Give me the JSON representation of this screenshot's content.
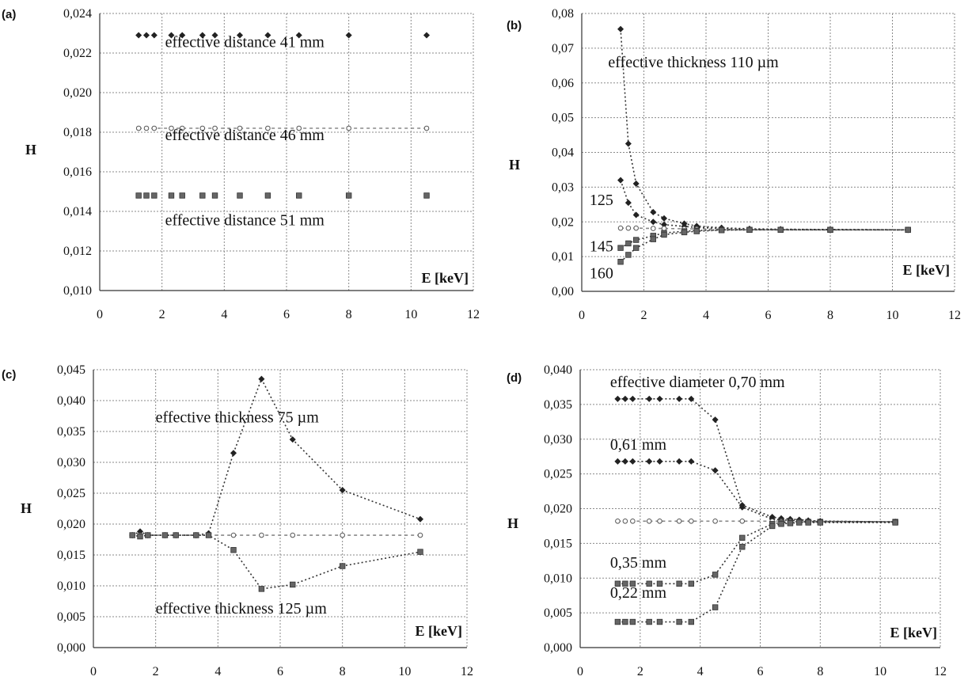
{
  "chart_data": [
    {
      "type": "scatter",
      "panel_label": "(a)",
      "xlabel": "E [keV]",
      "ylabel": "H",
      "xlim": [
        0,
        12
      ],
      "ylim": [
        0.01,
        0.024
      ],
      "x_ticks": [
        "0",
        "2",
        "4",
        "6",
        "8",
        "10",
        "12"
      ],
      "y_ticks": [
        "0,010",
        "0,012",
        "0,014",
        "0,016",
        "0,018",
        "0,020",
        "0,022",
        "0,024"
      ],
      "grid": true,
      "series": [
        {
          "marker": "filled-diamond",
          "line": "none",
          "x": [
            1.25,
            1.5,
            1.75,
            2.3,
            2.65,
            3.3,
            3.7,
            4.5,
            5.4,
            6.4,
            8.0,
            10.5
          ],
          "y": [
            0.0229,
            0.0229,
            0.0229,
            0.0229,
            0.0229,
            0.0229,
            0.0229,
            0.0229,
            0.0229,
            0.0229,
            0.0229,
            0.0229
          ]
        },
        {
          "marker": "open-circle",
          "line": "dashed",
          "x": [
            1.25,
            1.5,
            1.75,
            2.3,
            2.65,
            3.3,
            3.7,
            4.5,
            5.4,
            6.4,
            8.0,
            10.5
          ],
          "y": [
            0.0182,
            0.0182,
            0.0182,
            0.0182,
            0.0182,
            0.0182,
            0.0182,
            0.0182,
            0.0182,
            0.0182,
            0.0182,
            0.0182
          ]
        },
        {
          "marker": "filled-square",
          "line": "none",
          "x": [
            1.25,
            1.5,
            1.75,
            2.3,
            2.65,
            3.3,
            3.7,
            4.5,
            5.4,
            6.4,
            8.0,
            10.5
          ],
          "y": [
            0.0148,
            0.0148,
            0.0148,
            0.0148,
            0.0148,
            0.0148,
            0.0148,
            0.0148,
            0.0148,
            0.0148,
            0.0148,
            0.0148
          ]
        }
      ],
      "annotations": [
        {
          "text": "effective distance 41 mm",
          "x": 2.1,
          "y": 0.0223
        },
        {
          "text": "effective distance 46 mm",
          "x": 2.1,
          "y": 0.0176
        },
        {
          "text": "effective distance 51 mm",
          "x": 2.1,
          "y": 0.0133
        }
      ]
    },
    {
      "type": "scatter",
      "panel_label": "(b)",
      "xlabel": "E [keV]",
      "ylabel": "H",
      "xlim": [
        0,
        12
      ],
      "ylim": [
        0.0,
        0.08
      ],
      "x_ticks": [
        "0",
        "2",
        "4",
        "6",
        "8",
        "10",
        "12"
      ],
      "y_ticks": [
        "0,00",
        "0,01",
        "0,02",
        "0,03",
        "0,04",
        "0,05",
        "0,06",
        "0,07",
        "0,08"
      ],
      "grid": true,
      "series": [
        {
          "marker": "filled-diamond",
          "line": "dotted",
          "x": [
            1.25,
            1.5,
            1.75,
            2.3,
            2.65,
            3.3,
            3.7,
            4.5,
            5.4,
            6.4,
            8.0,
            10.5
          ],
          "y": [
            0.0755,
            0.0425,
            0.031,
            0.0228,
            0.021,
            0.0195,
            0.0188,
            0.0183,
            0.018,
            0.0179,
            0.0178,
            0.0177
          ]
        },
        {
          "marker": "filled-diamond",
          "line": "dotted",
          "x": [
            1.25,
            1.5,
            1.75,
            2.3,
            2.65,
            3.3,
            3.7,
            4.5,
            5.4,
            6.4,
            8.0,
            10.5
          ],
          "y": [
            0.032,
            0.0255,
            0.022,
            0.02,
            0.0192,
            0.0187,
            0.0184,
            0.0181,
            0.0179,
            0.0178,
            0.0178,
            0.0177
          ]
        },
        {
          "marker": "open-circle",
          "line": "dashed",
          "x": [
            1.25,
            1.5,
            1.75,
            2.3,
            2.65,
            3.3,
            3.7,
            4.5,
            5.4,
            6.4,
            8.0,
            10.5
          ],
          "y": [
            0.0182,
            0.0182,
            0.0182,
            0.0181,
            0.0181,
            0.018,
            0.018,
            0.0179,
            0.0178,
            0.0178,
            0.0177,
            0.0177
          ]
        },
        {
          "marker": "filled-square",
          "line": "dotted",
          "x": [
            1.25,
            1.5,
            1.75,
            2.3,
            2.65,
            3.3,
            3.7,
            4.5,
            5.4,
            6.4,
            8.0,
            10.5
          ],
          "y": [
            0.0125,
            0.0138,
            0.0148,
            0.016,
            0.0168,
            0.0173,
            0.0175,
            0.0177,
            0.0177,
            0.0177,
            0.0177,
            0.0177
          ]
        },
        {
          "marker": "filled-square",
          "line": "dotted",
          "x": [
            1.25,
            1.5,
            1.75,
            2.3,
            2.65,
            3.3,
            3.7,
            4.5,
            5.4,
            6.4,
            8.0,
            10.5
          ],
          "y": [
            0.0085,
            0.0105,
            0.0125,
            0.015,
            0.0163,
            0.017,
            0.0173,
            0.0176,
            0.0177,
            0.0177,
            0.0177,
            0.0177
          ]
        }
      ],
      "annotations": [
        {
          "text": "effective thickness 110 µm",
          "x": 0.85,
          "y": 0.0645
        },
        {
          "text": "125",
          "x": 0.25,
          "y": 0.0248
        },
        {
          "text": "145",
          "x": 0.25,
          "y": 0.0115
        },
        {
          "text": "160",
          "x": 0.25,
          "y": 0.0038
        }
      ]
    },
    {
      "type": "scatter",
      "panel_label": "(c)",
      "xlabel": "E [keV]",
      "ylabel": "H",
      "xlim": [
        0,
        12
      ],
      "ylim": [
        0.0,
        0.045
      ],
      "x_ticks": [
        "0",
        "2",
        "4",
        "6",
        "8",
        "10",
        "12"
      ],
      "y_ticks": [
        "0,000",
        "0,005",
        "0,010",
        "0,015",
        "0,020",
        "0,025",
        "0,030",
        "0,035",
        "0,040",
        "0,045"
      ],
      "grid": true,
      "series": [
        {
          "marker": "filled-diamond",
          "line": "dotted",
          "x": [
            1.25,
            1.5,
            1.75,
            2.3,
            2.65,
            3.3,
            3.7,
            4.5,
            5.4,
            6.4,
            8.0,
            10.5
          ],
          "y": [
            0.0182,
            0.0188,
            0.0182,
            0.0182,
            0.0182,
            0.0182,
            0.0185,
            0.0315,
            0.0435,
            0.0337,
            0.0255,
            0.0208
          ]
        },
        {
          "marker": "open-circle",
          "line": "dashed",
          "x": [
            1.25,
            1.5,
            1.75,
            2.3,
            2.65,
            3.3,
            3.7,
            4.5,
            5.4,
            6.4,
            8.0,
            10.5
          ],
          "y": [
            0.0182,
            0.0182,
            0.0182,
            0.0182,
            0.0182,
            0.0182,
            0.0182,
            0.0182,
            0.0182,
            0.0182,
            0.0182,
            0.0182
          ]
        },
        {
          "marker": "filled-square",
          "line": "dotted",
          "x": [
            1.25,
            1.5,
            1.75,
            2.3,
            2.65,
            3.3,
            3.7,
            4.5,
            5.4,
            6.4,
            8.0,
            10.5
          ],
          "y": [
            0.0182,
            0.018,
            0.0182,
            0.0182,
            0.0182,
            0.0182,
            0.0182,
            0.0158,
            0.0095,
            0.0102,
            0.0132,
            0.0155
          ]
        }
      ],
      "annotations": [
        {
          "text": "effective thickness 75 µm",
          "x": 2.0,
          "y": 0.0365
        },
        {
          "text": "effective thickness 125 µm",
          "x": 2.0,
          "y": 0.0055
        }
      ]
    },
    {
      "type": "scatter",
      "panel_label": "(d)",
      "xlabel": "E [keV]",
      "ylabel": "H",
      "xlim": [
        0,
        12
      ],
      "ylim": [
        0.0,
        0.04
      ],
      "x_ticks": [
        "0",
        "2",
        "4",
        "6",
        "8",
        "10",
        "12"
      ],
      "y_ticks": [
        "0,000",
        "0,005",
        "0,010",
        "0,015",
        "0,020",
        "0,025",
        "0,030",
        "0,035",
        "0,040"
      ],
      "grid": true,
      "series": [
        {
          "marker": "filled-diamond",
          "line": "dotted",
          "x": [
            1.25,
            1.5,
            1.75,
            2.3,
            2.65,
            3.3,
            3.7,
            4.5,
            5.4,
            6.4,
            6.7,
            7.0,
            7.3,
            7.6,
            8.0,
            10.5
          ],
          "y": [
            0.0358,
            0.0358,
            0.0358,
            0.0358,
            0.0358,
            0.0358,
            0.0358,
            0.0328,
            0.0205,
            0.0188,
            0.0186,
            0.0185,
            0.0184,
            0.0183,
            0.0182,
            0.0181
          ]
        },
        {
          "marker": "filled-diamond",
          "line": "dotted",
          "x": [
            1.25,
            1.5,
            1.75,
            2.3,
            2.65,
            3.3,
            3.7,
            4.5,
            5.4,
            6.4,
            6.7,
            7.0,
            7.3,
            7.6,
            8.0,
            10.5
          ],
          "y": [
            0.0268,
            0.0268,
            0.0268,
            0.0268,
            0.0268,
            0.0268,
            0.0268,
            0.0255,
            0.0202,
            0.0185,
            0.0184,
            0.0183,
            0.0183,
            0.0182,
            0.0182,
            0.0181
          ]
        },
        {
          "marker": "open-circle",
          "line": "dashed",
          "x": [
            1.25,
            1.5,
            1.75,
            2.3,
            2.65,
            3.3,
            3.7,
            4.5,
            5.4,
            6.4,
            6.7,
            7.0,
            7.3,
            7.6,
            8.0,
            10.5
          ],
          "y": [
            0.0182,
            0.0182,
            0.0182,
            0.0182,
            0.0182,
            0.0182,
            0.0182,
            0.0182,
            0.0182,
            0.0182,
            0.0182,
            0.0182,
            0.0181,
            0.0181,
            0.0181,
            0.0181
          ]
        },
        {
          "marker": "filled-square",
          "line": "dotted",
          "x": [
            1.25,
            1.5,
            1.75,
            2.3,
            2.65,
            3.3,
            3.7,
            4.5,
            5.4,
            6.4,
            6.7,
            7.0,
            7.3,
            7.6,
            8.0,
            10.5
          ],
          "y": [
            0.0092,
            0.0092,
            0.0092,
            0.0092,
            0.0092,
            0.0092,
            0.0092,
            0.0105,
            0.0158,
            0.0178,
            0.018,
            0.018,
            0.0181,
            0.0181,
            0.0181,
            0.0181
          ]
        },
        {
          "marker": "filled-square",
          "line": "dotted",
          "x": [
            1.25,
            1.5,
            1.75,
            2.3,
            2.65,
            3.3,
            3.7,
            4.5,
            5.4,
            6.4,
            6.7,
            7.0,
            7.3,
            7.6,
            8.0,
            10.5
          ],
          "y": [
            0.0037,
            0.0037,
            0.0037,
            0.0037,
            0.0037,
            0.0037,
            0.0037,
            0.0058,
            0.0145,
            0.0175,
            0.0178,
            0.0179,
            0.018,
            0.018,
            0.018,
            0.018
          ]
        }
      ],
      "annotations": [
        {
          "text": "effective diameter 0,70 mm",
          "x": 1.0,
          "y": 0.0375
        },
        {
          "text": "0,61 mm",
          "x": 1.0,
          "y": 0.0285
        },
        {
          "text": "0,35 mm",
          "x": 1.0,
          "y": 0.0115
        },
        {
          "text": "0,22 mm",
          "x": 1.0,
          "y": 0.0072
        }
      ]
    }
  ]
}
